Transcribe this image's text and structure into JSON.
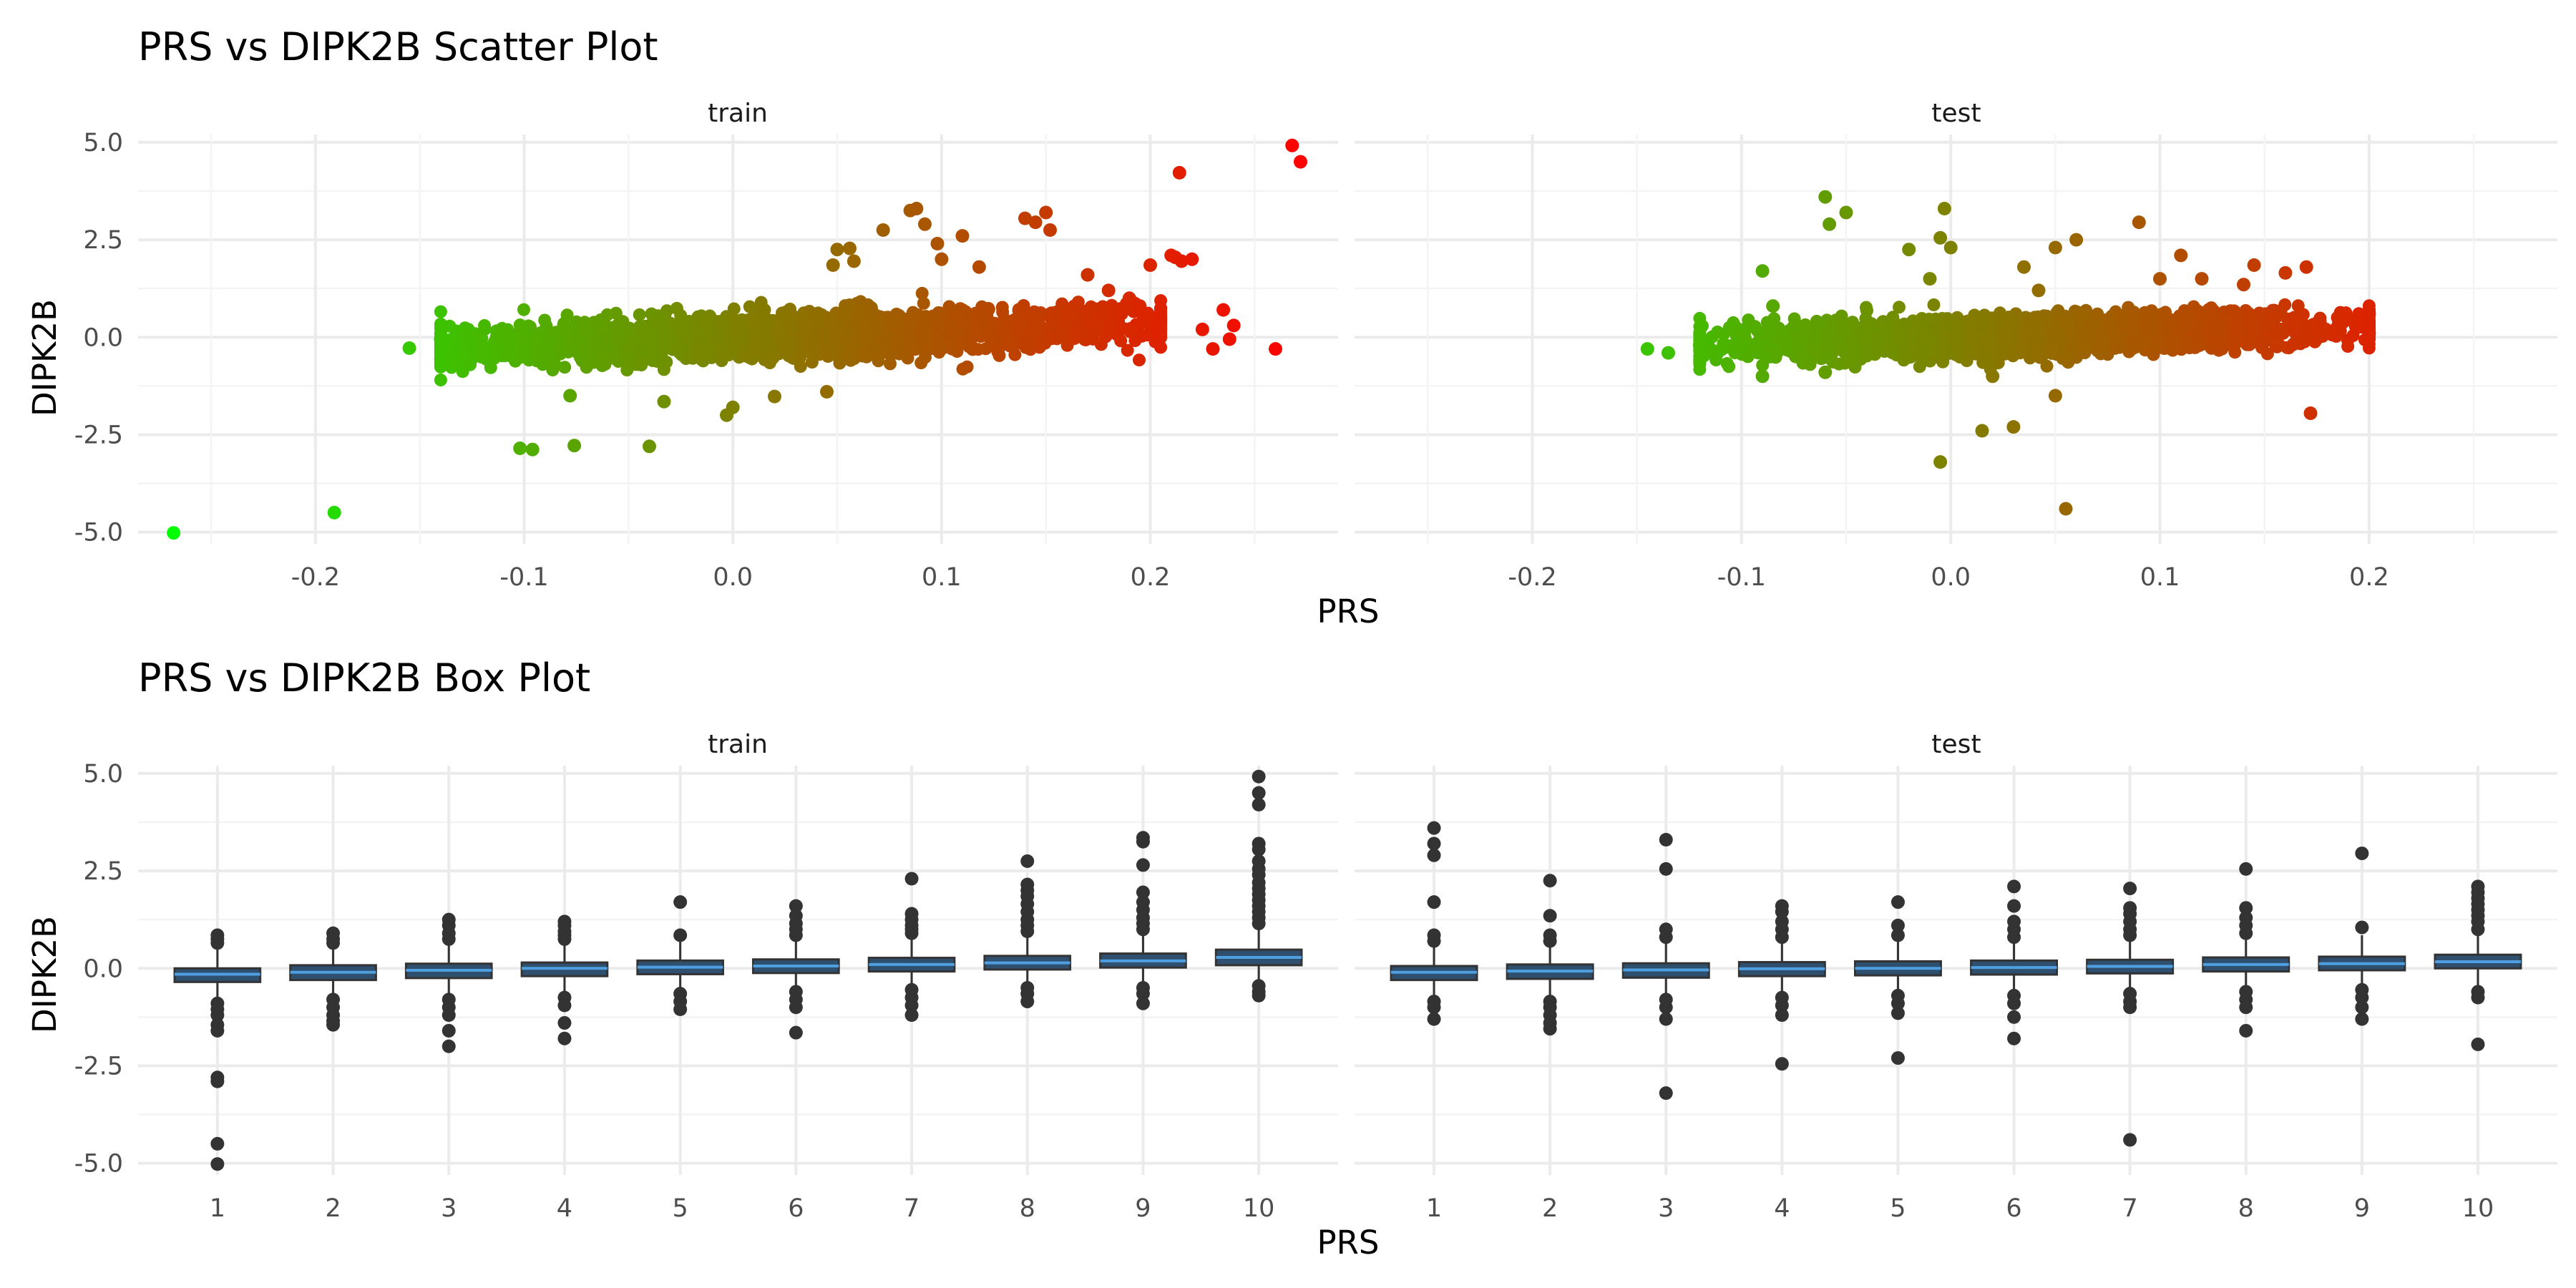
{
  "colors": {
    "low": "#00ff00",
    "high": "#ff0000",
    "box_fill": "#2f4f6f",
    "box_median": "#4f9fe0",
    "box_line": "#333333",
    "outlier": "#333333",
    "grid_major": "#ebebeb",
    "grid_minor": "#f4f4f4"
  },
  "chart_data": [
    {
      "type": "scatter",
      "title": "PRS vs DIPK2B Scatter Plot",
      "xlabel": "PRS",
      "ylabel": "DIPK2B",
      "xlim": [
        -0.285,
        0.29
      ],
      "ylim": [
        -5.3,
        5.2
      ],
      "x_ticks": [
        -0.2,
        -0.1,
        0.0,
        0.1,
        0.2
      ],
      "x_tick_labels": [
        "-0.2",
        "-0.1",
        "0.0",
        "0.1",
        "0.2"
      ],
      "y_ticks": [
        5.0,
        2.5,
        0.0,
        -2.5,
        -5.0
      ],
      "y_tick_labels": [
        "5.0",
        "2.5",
        "0.0",
        "-2.5",
        "-5.0"
      ],
      "color_scale": "gradient by PRS: green (low) to red (high)",
      "grid": true,
      "legend": "none",
      "panels": [
        {
          "name": "train",
          "cloud": {
            "x_range": [
              -0.14,
              0.205
            ],
            "slope": 1.8,
            "spread": 0.28
          },
          "points": [
            [
              -0.268,
              -5.02
            ],
            [
              -0.191,
              -4.5
            ],
            [
              -0.155,
              -0.28
            ],
            [
              -0.14,
              -0.05
            ],
            [
              -0.135,
              -0.5
            ],
            [
              -0.102,
              -2.85
            ],
            [
              -0.096,
              -2.88
            ],
            [
              -0.076,
              -2.78
            ],
            [
              -0.078,
              -1.5
            ],
            [
              -0.04,
              -2.8
            ],
            [
              -0.033,
              -1.65
            ],
            [
              -0.003,
              -2.0
            ],
            [
              0.0,
              -1.8
            ],
            [
              0.02,
              -1.52
            ],
            [
              0.045,
              -1.4
            ],
            [
              0.048,
              1.85
            ],
            [
              0.05,
              2.25
            ],
            [
              0.056,
              2.28
            ],
            [
              0.058,
              1.95
            ],
            [
              0.072,
              2.75
            ],
            [
              0.085,
              3.25
            ],
            [
              0.088,
              3.3
            ],
            [
              0.092,
              2.9
            ],
            [
              0.098,
              2.4
            ],
            [
              0.1,
              2.0
            ],
            [
              0.11,
              2.6
            ],
            [
              0.118,
              1.8
            ],
            [
              0.14,
              3.05
            ],
            [
              0.145,
              2.95
            ],
            [
              0.15,
              3.2
            ],
            [
              0.152,
              2.75
            ],
            [
              0.17,
              1.6
            ],
            [
              0.2,
              1.85
            ],
            [
              0.21,
              2.1
            ],
            [
              0.212,
              2.05
            ],
            [
              0.214,
              4.22
            ],
            [
              0.215,
              1.95
            ],
            [
              0.22,
              2.0
            ],
            [
              0.23,
              -0.3
            ],
            [
              0.235,
              0.7
            ],
            [
              0.238,
              -0.05
            ],
            [
              0.24,
              0.3
            ],
            [
              0.26,
              -0.3
            ],
            [
              0.268,
              4.92
            ],
            [
              0.272,
              4.5
            ],
            [
              0.18,
              1.2
            ],
            [
              0.19,
              1.0
            ],
            [
              0.195,
              0.8
            ],
            [
              0.225,
              0.2
            ]
          ]
        },
        {
          "name": "test",
          "cloud": {
            "x_range": [
              -0.12,
              0.2
            ],
            "slope": 1.5,
            "spread": 0.25
          },
          "points": [
            [
              -0.145,
              -0.3
            ],
            [
              -0.135,
              -0.4
            ],
            [
              -0.12,
              -0.2
            ],
            [
              -0.09,
              1.7
            ],
            [
              -0.085,
              0.8
            ],
            [
              -0.09,
              -1.0
            ],
            [
              -0.06,
              3.6
            ],
            [
              -0.058,
              2.9
            ],
            [
              -0.05,
              3.2
            ],
            [
              -0.06,
              -0.9
            ],
            [
              -0.02,
              2.25
            ],
            [
              -0.01,
              1.5
            ],
            [
              -0.005,
              2.55
            ],
            [
              -0.003,
              3.3
            ],
            [
              0.0,
              2.3
            ],
            [
              -0.005,
              -3.2
            ],
            [
              0.015,
              -2.4
            ],
            [
              0.02,
              -1.0
            ],
            [
              0.03,
              -2.3
            ],
            [
              0.035,
              1.8
            ],
            [
              0.042,
              1.2
            ],
            [
              0.05,
              2.3
            ],
            [
              0.05,
              -1.5
            ],
            [
              0.055,
              -4.4
            ],
            [
              0.06,
              2.5
            ],
            [
              0.09,
              2.95
            ],
            [
              0.1,
              1.5
            ],
            [
              0.11,
              2.1
            ],
            [
              0.12,
              1.5
            ],
            [
              0.14,
              1.35
            ],
            [
              0.145,
              1.85
            ],
            [
              0.16,
              1.65
            ],
            [
              0.17,
              1.8
            ],
            [
              0.172,
              -1.95
            ],
            [
              0.2,
              0.6
            ],
            [
              0.2,
              0.1
            ],
            [
              0.19,
              0.45
            ]
          ]
        }
      ]
    },
    {
      "type": "box",
      "title": "PRS vs DIPK2B Box Plot",
      "xlabel": "PRS",
      "ylabel": "DIPK2B",
      "ylim": [
        -5.3,
        5.2
      ],
      "categories": [
        "1",
        "2",
        "3",
        "4",
        "5",
        "6",
        "7",
        "8",
        "9",
        "10"
      ],
      "y_ticks": [
        5.0,
        2.5,
        0.0,
        -2.5,
        -5.0
      ],
      "y_tick_labels": [
        "5.0",
        "2.5",
        "0.0",
        "-2.5",
        "-5.0"
      ],
      "grid": true,
      "legend": "none",
      "panels": [
        {
          "name": "train",
          "boxes": [
            {
              "q1": -0.35,
              "median": -0.15,
              "q3": 0.0,
              "whisker_low": -0.85,
              "whisker_high": 0.55,
              "outliers": [
                0.65,
                0.75,
                0.85,
                -0.9,
                -1.05,
                -1.2,
                -1.45,
                -1.6,
                -2.8,
                -2.9,
                -4.5,
                -5.02
              ]
            },
            {
              "q1": -0.3,
              "median": -0.1,
              "q3": 0.08,
              "whisker_low": -0.75,
              "whisker_high": 0.58,
              "outliers": [
                0.65,
                0.75,
                0.9,
                -0.8,
                -1.0,
                -1.2,
                -1.35,
                -1.45
              ]
            },
            {
              "q1": -0.25,
              "median": -0.05,
              "q3": 0.12,
              "whisker_low": -0.7,
              "whisker_high": 0.65,
              "outliers": [
                0.75,
                0.9,
                1.1,
                1.25,
                -0.8,
                -1.0,
                -1.2,
                -1.6,
                -2.0
              ]
            },
            {
              "q1": -0.2,
              "median": 0.0,
              "q3": 0.15,
              "whisker_low": -0.65,
              "whisker_high": 0.7,
              "outliers": [
                0.75,
                0.85,
                0.95,
                1.1,
                1.2,
                -0.75,
                -0.95,
                -1.4,
                -1.8
              ]
            },
            {
              "q1": -0.15,
              "median": 0.03,
              "q3": 0.2,
              "whisker_low": -0.6,
              "whisker_high": 0.75,
              "outliers": [
                0.85,
                1.7,
                -0.65,
                -0.85,
                -1.05
              ]
            },
            {
              "q1": -0.12,
              "median": 0.06,
              "q3": 0.23,
              "whisker_low": -0.55,
              "whisker_high": 0.78,
              "outliers": [
                0.85,
                1.0,
                1.15,
                1.35,
                1.6,
                -0.6,
                -0.8,
                -1.0,
                -1.65
              ]
            },
            {
              "q1": -0.08,
              "median": 0.1,
              "q3": 0.27,
              "whisker_low": -0.5,
              "whisker_high": 0.82,
              "outliers": [
                0.9,
                1.0,
                1.1,
                1.25,
                1.4,
                2.3,
                -0.55,
                -0.75,
                -0.95,
                -1.2
              ]
            },
            {
              "q1": -0.03,
              "median": 0.14,
              "q3": 0.32,
              "whisker_low": -0.45,
              "whisker_high": 0.88,
              "outliers": [
                0.95,
                1.1,
                1.25,
                1.45,
                1.65,
                1.85,
                2.0,
                2.15,
                2.75,
                -0.5,
                -0.65,
                -0.85
              ]
            },
            {
              "q1": 0.02,
              "median": 0.19,
              "q3": 0.38,
              "whisker_low": -0.4,
              "whisker_high": 0.95,
              "outliers": [
                1.0,
                1.15,
                1.3,
                1.5,
                1.7,
                1.95,
                2.65,
                3.25,
                3.35,
                -0.5,
                -0.65,
                -0.9
              ]
            },
            {
              "q1": 0.08,
              "median": 0.28,
              "q3": 0.48,
              "whisker_low": -0.35,
              "whisker_high": 1.05,
              "outliers": [
                1.15,
                1.3,
                1.45,
                1.6,
                1.75,
                1.9,
                2.05,
                2.2,
                2.4,
                2.55,
                2.75,
                3.05,
                3.2,
                4.2,
                4.5,
                4.92,
                -0.45,
                -0.6,
                -0.7
              ]
            }
          ]
        },
        {
          "name": "test",
          "boxes": [
            {
              "q1": -0.3,
              "median": -0.1,
              "q3": 0.06,
              "whisker_low": -0.75,
              "whisker_high": 0.6,
              "outliers": [
                0.7,
                0.85,
                1.7,
                2.9,
                3.2,
                3.6,
                -0.85,
                -1.0,
                -1.3
              ]
            },
            {
              "q1": -0.27,
              "median": -0.07,
              "q3": 0.1,
              "whisker_low": -0.7,
              "whisker_high": 0.6,
              "outliers": [
                0.7,
                0.85,
                1.35,
                2.25,
                -0.85,
                -1.0,
                -1.2,
                -1.4,
                -1.55
              ]
            },
            {
              "q1": -0.24,
              "median": -0.04,
              "q3": 0.13,
              "whisker_low": -0.65,
              "whisker_high": 0.65,
              "outliers": [
                0.8,
                1.0,
                2.55,
                3.3,
                -0.8,
                -1.0,
                -1.3,
                -3.2
              ]
            },
            {
              "q1": -0.2,
              "median": -0.01,
              "q3": 0.16,
              "whisker_low": -0.6,
              "whisker_high": 0.68,
              "outliers": [
                0.8,
                1.0,
                1.2,
                1.45,
                1.6,
                -0.75,
                -0.95,
                -1.2,
                -2.45
              ]
            },
            {
              "q1": -0.18,
              "median": 0.0,
              "q3": 0.18,
              "whisker_low": -0.6,
              "whisker_high": 0.7,
              "outliers": [
                0.85,
                1.1,
                1.7,
                -0.7,
                -0.9,
                -1.15,
                -2.3
              ]
            },
            {
              "q1": -0.16,
              "median": 0.02,
              "q3": 0.2,
              "whisker_low": -0.58,
              "whisker_high": 0.72,
              "outliers": [
                0.8,
                1.0,
                1.2,
                1.6,
                2.1,
                -0.7,
                -0.9,
                -1.25,
                -1.8
              ]
            },
            {
              "q1": -0.13,
              "median": 0.05,
              "q3": 0.22,
              "whisker_low": -0.55,
              "whisker_high": 0.75,
              "outliers": [
                0.85,
                1.0,
                1.2,
                1.4,
                1.55,
                2.05,
                -0.65,
                -0.85,
                -1.0,
                -4.4
              ]
            },
            {
              "q1": -0.08,
              "median": 0.1,
              "q3": 0.28,
              "whisker_low": -0.5,
              "whisker_high": 0.8,
              "outliers": [
                0.9,
                1.1,
                1.3,
                1.55,
                2.55,
                -0.6,
                -0.8,
                -1.0,
                -1.6
              ]
            },
            {
              "q1": -0.05,
              "median": 0.12,
              "q3": 0.3,
              "whisker_low": -0.45,
              "whisker_high": 0.85,
              "outliers": [
                1.05,
                2.95,
                -0.55,
                -0.75,
                -1.0,
                -1.3
              ]
            },
            {
              "q1": 0.0,
              "median": 0.17,
              "q3": 0.35,
              "whisker_low": -0.45,
              "whisker_high": 0.9,
              "outliers": [
                1.0,
                1.2,
                1.35,
                1.5,
                1.65,
                1.8,
                1.95,
                2.1,
                -0.6,
                -0.75,
                -1.95
              ]
            }
          ]
        }
      ]
    }
  ]
}
